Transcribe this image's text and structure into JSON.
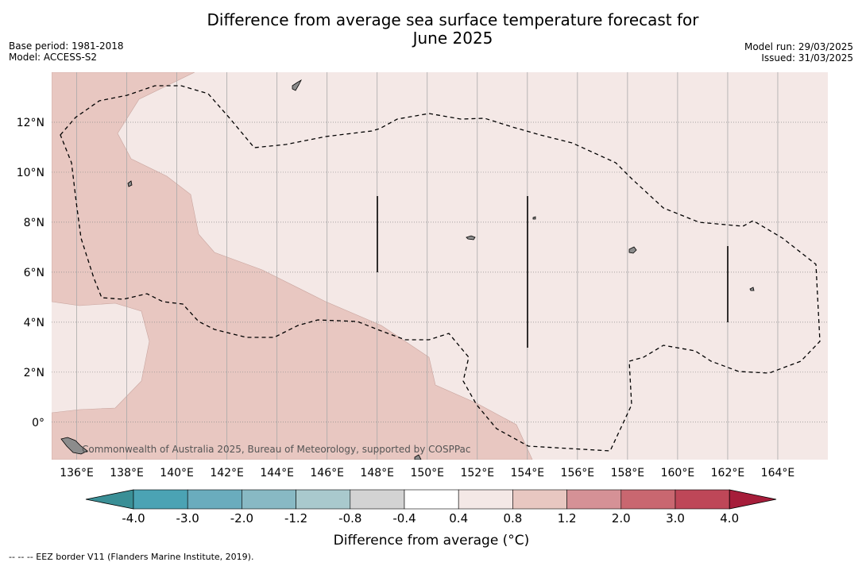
{
  "header": {
    "title_line1": "Difference from average sea surface temperature forecast for",
    "title_line2": "June 2025",
    "base_period": "Base period: 1981-2018",
    "model": "Model: ACCESS-S2",
    "model_run": "Model run: 29/03/2025",
    "issued": "Issued: 31/03/2025"
  },
  "map": {
    "lon_range": [
      135,
      166
    ],
    "lat_range": [
      -1.5,
      14
    ],
    "lon_ticks": [
      "136°E",
      "138°E",
      "140°E",
      "142°E",
      "144°E",
      "146°E",
      "148°E",
      "150°E",
      "152°E",
      "154°E",
      "156°E",
      "158°E",
      "160°E",
      "162°E",
      "164°E"
    ],
    "lon_tick_values": [
      136,
      138,
      140,
      142,
      144,
      146,
      148,
      150,
      152,
      154,
      156,
      158,
      160,
      162,
      164
    ],
    "lat_ticks": [
      "12°N",
      "10°N",
      "8°N",
      "6°N",
      "4°N",
      "2°N",
      "0°"
    ],
    "lat_tick_values": [
      12,
      10,
      8,
      6,
      4,
      2,
      0
    ],
    "colors": {
      "band_0_4_to_0_8": "#f4e8e6",
      "band_0_8_to_1_2": "#e8c7c1",
      "eez_border": "#000000",
      "land": "#8c8c8c"
    },
    "copyright": "Commonwealth of Australia 2025, Bureau of Meteorology, supported by COSPPac"
  },
  "colorbar": {
    "labels": [
      "-4.0",
      "-3.0",
      "-2.0",
      "-1.2",
      "-0.8",
      "-0.4",
      "0.4",
      "0.8",
      "1.2",
      "2.0",
      "3.0",
      "4.0"
    ],
    "colors": [
      "#4ba3b4",
      "#6aacbd",
      "#88b9c4",
      "#a9c9cd",
      "#d3d3d3",
      "#ffffff",
      "#f4e8e6",
      "#e8c7c1",
      "#d59196",
      "#c96770",
      "#be4758"
    ],
    "under_color": "#3a8f96",
    "over_color": "#a61d3a",
    "title": "Difference from average (°C)"
  },
  "footnote": "--  --  -- EEZ border V11 (Flanders Marine Institute, 2019)."
}
